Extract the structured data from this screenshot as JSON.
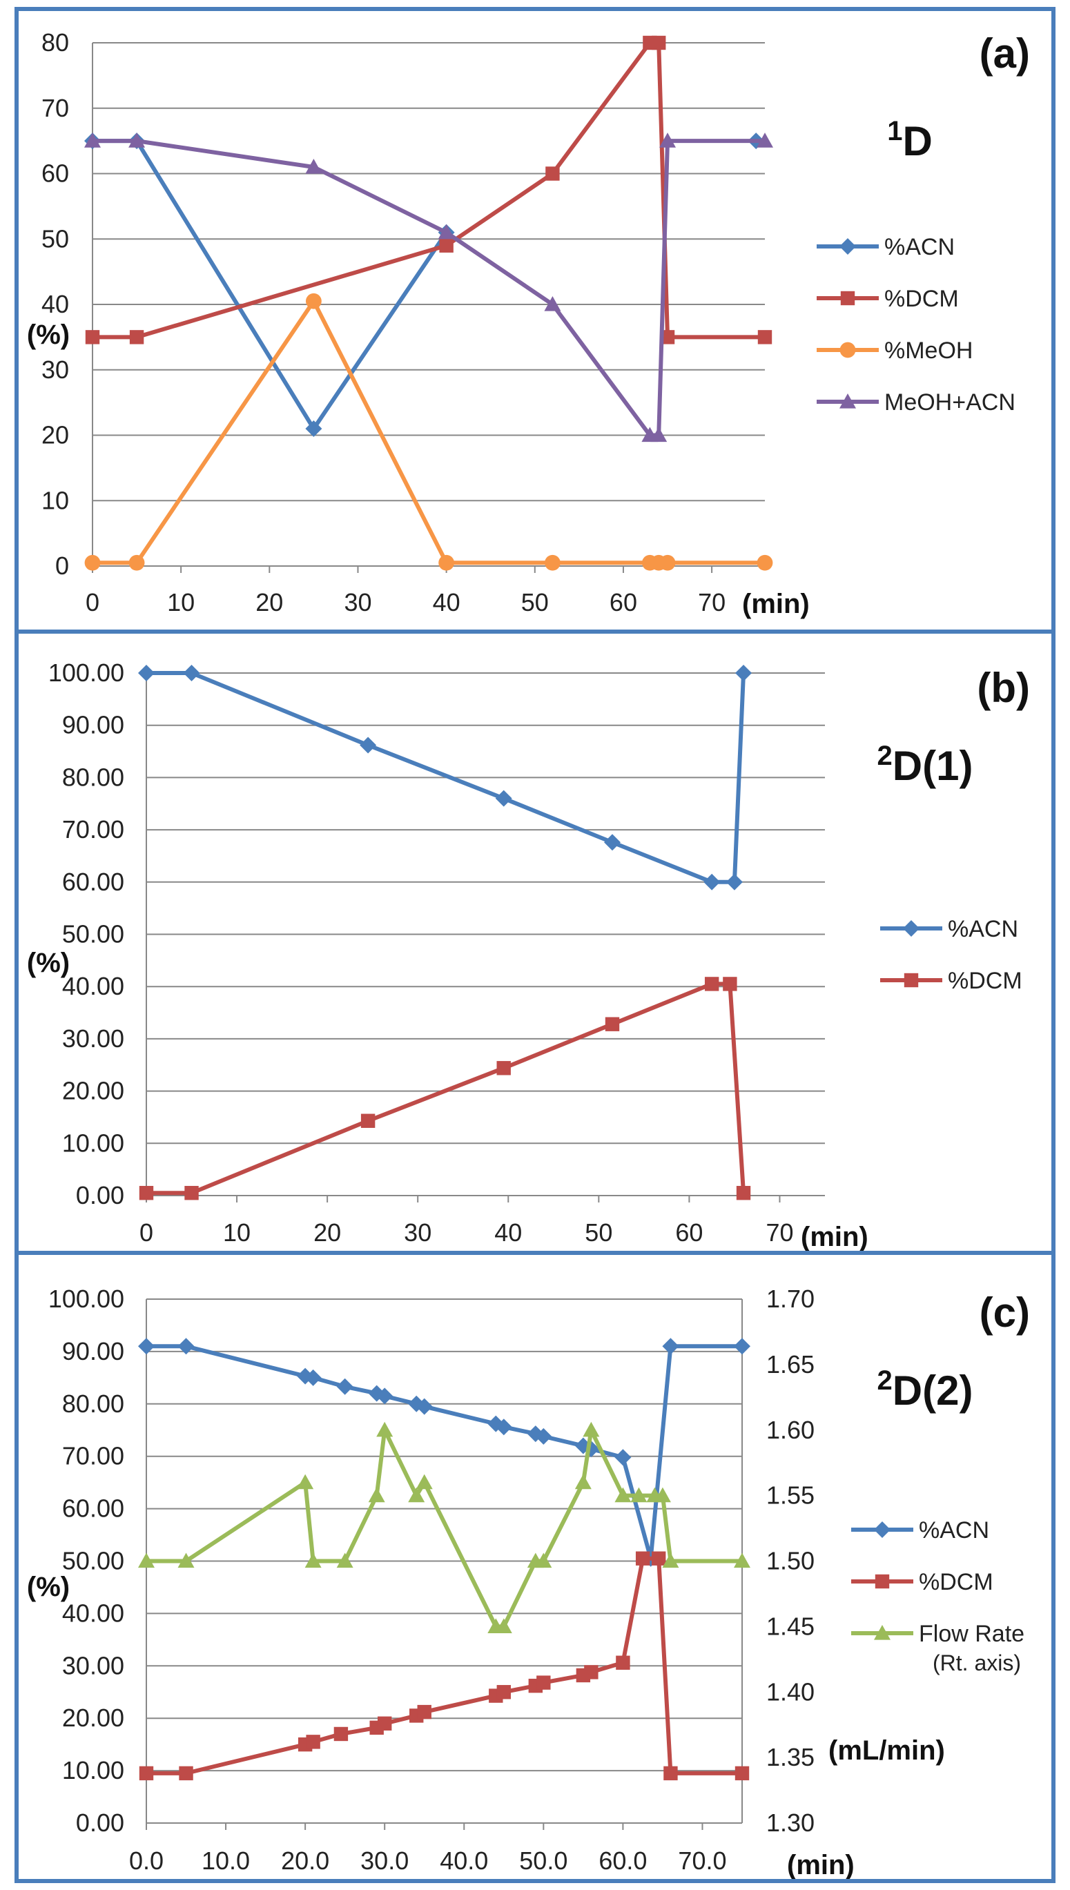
{
  "colors": {
    "frame": "#4A7EBB",
    "acn": "#4A7EBB",
    "dcm": "#BE4B48",
    "meoh": "#F79646",
    "meoh_acn": "#7E62A1",
    "flow": "#9BBB59"
  },
  "chart_data": [
    {
      "type": "line",
      "panel_label": "(a)",
      "title": "1D",
      "title_main": "1",
      "title_rest": "D",
      "xlabel": "(min)",
      "ylabel": "(%)",
      "xlim": [
        0,
        76
      ],
      "ylim": [
        0,
        80
      ],
      "xticks": [
        0,
        10,
        20,
        30,
        40,
        50,
        60,
        70
      ],
      "xtick_labels": [
        "0",
        "10",
        "20",
        "30",
        "40",
        "50",
        "60",
        "70"
      ],
      "yticks": [
        0,
        10,
        20,
        30,
        40,
        50,
        60,
        70,
        80
      ],
      "ytick_labels": [
        "0",
        "10",
        "20",
        "30",
        "40",
        "50",
        "60",
        "70",
        "80"
      ],
      "series": [
        {
          "name": "%ACN",
          "marker": "diamond",
          "color_key": "acn",
          "x": [
            0,
            5,
            25,
            40,
            75
          ],
          "y": [
            65,
            65,
            21,
            51,
            65
          ],
          "line_x": [
            0,
            5,
            25,
            40
          ]
        },
        {
          "name": "%DCM",
          "marker": "square",
          "color_key": "dcm",
          "x": [
            0,
            5,
            40,
            52,
            63,
            64,
            65,
            76
          ],
          "y": [
            35,
            35,
            49,
            60,
            80,
            80,
            35,
            35
          ]
        },
        {
          "name": "%MeOH",
          "marker": "circle",
          "color_key": "meoh",
          "x": [
            0,
            5,
            25,
            40,
            52,
            63,
            64,
            65,
            76
          ],
          "y": [
            0.5,
            0.5,
            40.5,
            0.5,
            0.5,
            0.5,
            0.5,
            0.5,
            0.5
          ]
        },
        {
          "name": "MeOH+ACN",
          "marker": "triangle",
          "color_key": "meoh_acn",
          "x": [
            0,
            5,
            25,
            40,
            52,
            63,
            64,
            65,
            76
          ],
          "y": [
            65,
            65,
            61,
            51,
            40,
            20,
            20,
            65,
            65
          ]
        }
      ],
      "legend": [
        "%ACN",
        "%DCM",
        "%MeOH",
        "MeOH+ACN"
      ]
    },
    {
      "type": "line",
      "panel_label": "(b)",
      "title": "2D(1)",
      "title_main": "2",
      "title_rest": "D(1)",
      "xlabel": "(min)",
      "ylabel": "(%)",
      "xlim": [
        0,
        75
      ],
      "ylim": [
        0,
        100
      ],
      "xticks": [
        0,
        10,
        20,
        30,
        40,
        50,
        60,
        70
      ],
      "xtick_labels": [
        "0",
        "10",
        "20",
        "30",
        "40",
        "50",
        "60",
        "70"
      ],
      "yticks": [
        0,
        10,
        20,
        30,
        40,
        50,
        60,
        70,
        80,
        90,
        100
      ],
      "ytick_labels": [
        "0.00",
        "10.00",
        "20.00",
        "30.00",
        "40.00",
        "50.00",
        "60.00",
        "70.00",
        "80.00",
        "90.00",
        "100.00"
      ],
      "series": [
        {
          "name": "%ACN",
          "marker": "diamond",
          "color_key": "acn",
          "x": [
            0,
            5,
            24.5,
            39.5,
            51.5,
            62.5,
            65,
            66
          ],
          "y": [
            100,
            100,
            86.2,
            76,
            67.6,
            60,
            60,
            100
          ]
        },
        {
          "name": "%DCM",
          "marker": "square",
          "color_key": "dcm",
          "x": [
            0,
            5,
            24.5,
            39.5,
            51.5,
            62.5,
            64.5,
            66
          ],
          "y": [
            0.5,
            0.5,
            14.3,
            24.4,
            32.8,
            40.5,
            40.5,
            0.5
          ]
        }
      ],
      "legend": [
        "%ACN",
        "%DCM"
      ]
    },
    {
      "type": "line",
      "panel_label": "(c)",
      "title": "2D(2)",
      "title_main": "2",
      "title_rest": "D(2)",
      "xlabel": "(min)",
      "ylabel": "(%)",
      "y2label": "(mL/min)",
      "xlim": [
        0,
        75
      ],
      "ylim": [
        0,
        100
      ],
      "y2lim": [
        1.3,
        1.7
      ],
      "xticks": [
        0,
        10,
        20,
        30,
        40,
        50,
        60,
        70
      ],
      "xtick_labels": [
        "0.0",
        "10.0",
        "20.0",
        "30.0",
        "40.0",
        "50.0",
        "60.0",
        "70.0"
      ],
      "yticks": [
        0,
        10,
        20,
        30,
        40,
        50,
        60,
        70,
        80,
        90,
        100
      ],
      "ytick_labels": [
        "0.00",
        "10.00",
        "20.00",
        "30.00",
        "40.00",
        "50.00",
        "60.00",
        "70.00",
        "80.00",
        "90.00",
        "100.00"
      ],
      "y2ticks": [
        1.3,
        1.35,
        1.4,
        1.45,
        1.5,
        1.55,
        1.6,
        1.65,
        1.7
      ],
      "y2tick_labels": [
        "1.30",
        "1.35",
        "1.40",
        "1.45",
        "1.50",
        "1.55",
        "1.60",
        "1.65",
        "1.70"
      ],
      "series": [
        {
          "name": "%ACN",
          "marker": "diamond",
          "color_key": "acn",
          "x": [
            0,
            5,
            20,
            21,
            25,
            29,
            30,
            34,
            35,
            44,
            45,
            49,
            50,
            55,
            56,
            60,
            63.5,
            66,
            75
          ],
          "y": [
            91,
            91,
            85.3,
            85,
            83.3,
            82,
            81.5,
            80,
            79.5,
            76.2,
            75.6,
            74.3,
            73.8,
            72,
            71.4,
            69.8,
            50.5,
            91,
            91
          ]
        },
        {
          "name": "%DCM",
          "marker": "square",
          "color_key": "dcm",
          "x": [
            0,
            5,
            20,
            21,
            24.5,
            29,
            30,
            34,
            35,
            44,
            45,
            49,
            50,
            55,
            56,
            60,
            62.5,
            64.5,
            66,
            75
          ],
          "y": [
            9.5,
            9.5,
            15,
            15.5,
            17,
            18.2,
            19,
            20.5,
            21.2,
            24.3,
            25,
            26.2,
            26.8,
            28.2,
            28.8,
            30.6,
            50.5,
            50.5,
            9.5,
            9.5
          ]
        },
        {
          "name": "Flow Rate",
          "legend_note": "(Rt. axis)",
          "axis": "right",
          "marker": "triangle",
          "color_key": "flow",
          "x": [
            0,
            5,
            20,
            21,
            25,
            29,
            30,
            34,
            35,
            44,
            45,
            49,
            50,
            55,
            56,
            60,
            62,
            64,
            65,
            66,
            75
          ],
          "y": [
            1.5,
            1.5,
            1.56,
            1.5,
            1.5,
            1.55,
            1.6,
            1.55,
            1.56,
            1.45,
            1.45,
            1.5,
            1.5,
            1.56,
            1.6,
            1.55,
            1.55,
            1.55,
            1.55,
            1.5,
            1.5
          ]
        }
      ],
      "legend": [
        "%ACN",
        "%DCM",
        "Flow Rate"
      ]
    }
  ]
}
